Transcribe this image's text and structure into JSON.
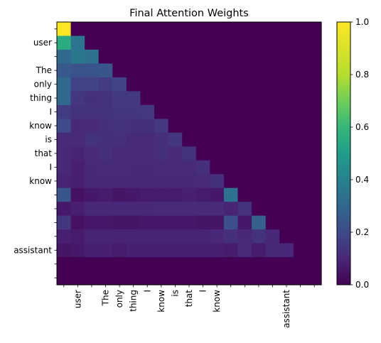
{
  "chart_data": {
    "type": "heatmap",
    "title": "Final Attention Weights",
    "xlabel": "",
    "ylabel": "",
    "tick_labels": [
      "",
      "user",
      "",
      "The",
      "only",
      "thing",
      "I",
      "know",
      "is",
      "that",
      "I",
      "know",
      "",
      "",
      "",
      "",
      "assistant",
      "",
      ""
    ],
    "colorbar": {
      "min": 0.0,
      "max": 1.0,
      "ticks": [
        "0.0",
        "0.2",
        "0.4",
        "0.6",
        "0.8",
        "1.0"
      ],
      "colormap": "viridis"
    },
    "values": [
      [
        1.0
      ],
      [
        0.55,
        0.35
      ],
      [
        0.3,
        0.36,
        0.34
      ],
      [
        0.25,
        0.23,
        0.23,
        0.24
      ],
      [
        0.3,
        0.18,
        0.18,
        0.16,
        0.18
      ],
      [
        0.3,
        0.14,
        0.12,
        0.13,
        0.15,
        0.15
      ],
      [
        0.16,
        0.13,
        0.13,
        0.13,
        0.14,
        0.14,
        0.15
      ],
      [
        0.2,
        0.1,
        0.11,
        0.12,
        0.13,
        0.12,
        0.12,
        0.15
      ],
      [
        0.11,
        0.11,
        0.13,
        0.12,
        0.12,
        0.11,
        0.11,
        0.12,
        0.14
      ],
      [
        0.1,
        0.09,
        0.11,
        0.12,
        0.11,
        0.11,
        0.11,
        0.12,
        0.11,
        0.13
      ],
      [
        0.1,
        0.08,
        0.1,
        0.11,
        0.11,
        0.1,
        0.1,
        0.11,
        0.11,
        0.11,
        0.12
      ],
      [
        0.09,
        0.08,
        0.1,
        0.1,
        0.1,
        0.1,
        0.1,
        0.1,
        0.1,
        0.1,
        0.11,
        0.12
      ],
      [
        0.24,
        0.04,
        0.06,
        0.07,
        0.05,
        0.06,
        0.07,
        0.07,
        0.07,
        0.08,
        0.07,
        0.06,
        0.34
      ],
      [
        0.06,
        0.08,
        0.1,
        0.1,
        0.1,
        0.1,
        0.1,
        0.11,
        0.11,
        0.11,
        0.11,
        0.11,
        0.09,
        0.13
      ],
      [
        0.14,
        0.04,
        0.06,
        0.06,
        0.05,
        0.05,
        0.06,
        0.06,
        0.06,
        0.06,
        0.05,
        0.05,
        0.22,
        0.06,
        0.28
      ],
      [
        0.08,
        0.07,
        0.09,
        0.09,
        0.09,
        0.09,
        0.09,
        0.09,
        0.09,
        0.09,
        0.09,
        0.1,
        0.12,
        0.1,
        0.13,
        0.1
      ],
      [
        0.05,
        0.06,
        0.08,
        0.08,
        0.07,
        0.08,
        0.08,
        0.08,
        0.08,
        0.08,
        0.08,
        0.08,
        0.07,
        0.11,
        0.07,
        0.1,
        0.1
      ]
    ],
    "grid": false
  }
}
